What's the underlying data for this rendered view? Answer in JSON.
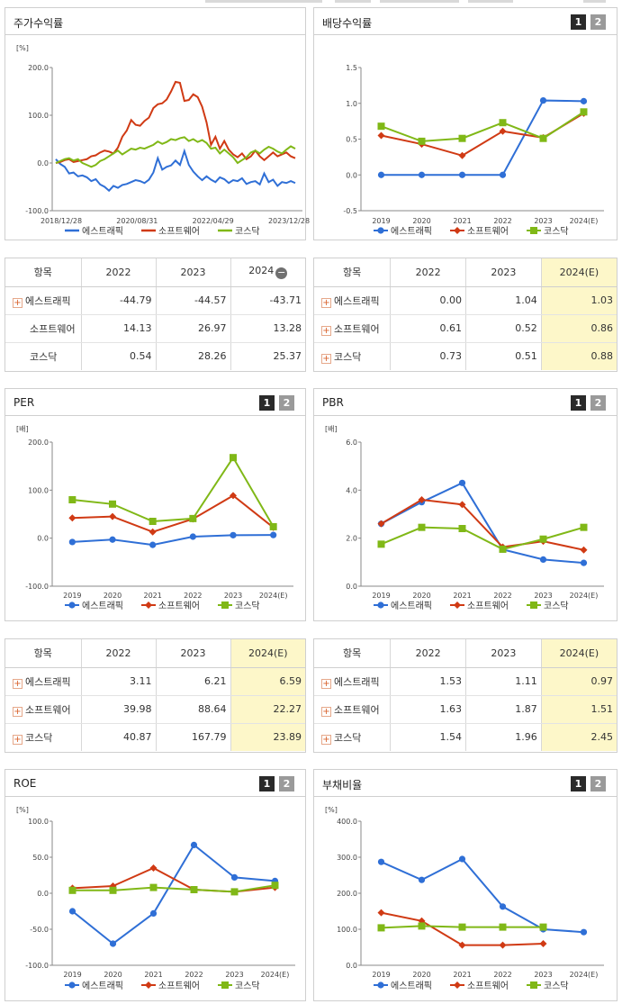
{
  "panels": {
    "stock_return": {
      "title": "주가수익률"
    },
    "dividend": {
      "title": "배당수익률"
    },
    "per": {
      "title": "PER"
    },
    "pbr": {
      "title": "PBR"
    },
    "roe": {
      "title": "ROE"
    },
    "debt": {
      "title": "부채비율"
    }
  },
  "buttons": {
    "one": "1",
    "two": "2"
  },
  "legend_icons": {
    "에스트래픽": "circle",
    "소프트웨어": "diamond",
    "코스닥": "square"
  },
  "tables": {
    "return_table": {
      "headers": [
        "항목",
        "2022",
        "2023",
        "2024"
      ],
      "rows": [
        {
          "name": "에스트래픽",
          "plus": true,
          "values": [
            "-44.79",
            "-44.57",
            "-43.71"
          ]
        },
        {
          "name": "소프트웨어",
          "plus": false,
          "values": [
            "14.13",
            "26.97",
            "13.28"
          ]
        },
        {
          "name": "코스닥",
          "plus": false,
          "values": [
            "0.54",
            "28.26",
            "25.37"
          ]
        }
      ]
    },
    "dividend_table": {
      "headers": [
        "항목",
        "2022",
        "2023",
        "2024(E)"
      ],
      "rows": [
        {
          "name": "에스트래픽",
          "plus": true,
          "values": [
            "0.00",
            "1.04",
            "1.03"
          ]
        },
        {
          "name": "소프트웨어",
          "plus": true,
          "values": [
            "0.61",
            "0.52",
            "0.86"
          ]
        },
        {
          "name": "코스닥",
          "plus": true,
          "values": [
            "0.73",
            "0.51",
            "0.88"
          ]
        }
      ]
    },
    "per_table": {
      "headers": [
        "항목",
        "2022",
        "2023",
        "2024(E)"
      ],
      "rows": [
        {
          "name": "에스트래픽",
          "plus": true,
          "values": [
            "3.11",
            "6.21",
            "6.59"
          ]
        },
        {
          "name": "소프트웨어",
          "plus": true,
          "values": [
            "39.98",
            "88.64",
            "22.27"
          ]
        },
        {
          "name": "코스닥",
          "plus": true,
          "values": [
            "40.87",
            "167.79",
            "23.89"
          ]
        }
      ]
    },
    "pbr_table": {
      "headers": [
        "항목",
        "2022",
        "2023",
        "2024(E)"
      ],
      "rows": [
        {
          "name": "에스트래픽",
          "plus": true,
          "values": [
            "1.53",
            "1.11",
            "0.97"
          ]
        },
        {
          "name": "소프트웨어",
          "plus": true,
          "values": [
            "1.63",
            "1.87",
            "1.51"
          ]
        },
        {
          "name": "코스닥",
          "plus": true,
          "values": [
            "1.54",
            "1.96",
            "2.45"
          ]
        }
      ]
    }
  },
  "chart_data": [
    {
      "id": "stock_return",
      "type": "line",
      "unit": "[%]",
      "ylim": [
        -100,
        200
      ],
      "yticks": [
        "200.0",
        "100.0",
        "0.0",
        "-100.0"
      ],
      "xlabels": [
        "2018/12/28",
        "2020/08/31",
        "2022/04/29",
        "2023/12/28"
      ],
      "series": [
        {
          "name": "에스트래픽",
          "color": "#2f6fd6",
          "values": [
            8,
            -2,
            -8,
            -22,
            -20,
            -28,
            -26,
            -30,
            -38,
            -34,
            -45,
            -50,
            -58,
            -48,
            -52,
            -46,
            -44,
            -40,
            -36,
            -38,
            -42,
            -35,
            -20,
            10,
            -14,
            -8,
            -5,
            5,
            -4,
            25,
            -4,
            -18,
            -28,
            -36,
            -28,
            -35,
            -40,
            -30,
            -34,
            -42,
            -36,
            -38,
            -32,
            -44,
            -40,
            -38,
            -45,
            -22,
            -40,
            -35,
            -48,
            -40,
            -42,
            -38,
            -42
          ]
        },
        {
          "name": "소프트웨어",
          "color": "#d03a14",
          "values": [
            0,
            2,
            6,
            8,
            2,
            4,
            6,
            8,
            14,
            16,
            22,
            26,
            24,
            20,
            32,
            55,
            68,
            90,
            80,
            78,
            88,
            95,
            115,
            123,
            125,
            133,
            150,
            170,
            168,
            130,
            132,
            144,
            138,
            118,
            85,
            38,
            55,
            30,
            46,
            28,
            18,
            12,
            20,
            8,
            14,
            26,
            14,
            6,
            14,
            22,
            14,
            18,
            22,
            14,
            10
          ]
        },
        {
          "name": "코스닥",
          "color": "#80b817",
          "values": [
            0,
            4,
            8,
            10,
            5,
            8,
            0,
            -4,
            -8,
            -4,
            4,
            8,
            14,
            20,
            26,
            18,
            24,
            30,
            28,
            32,
            30,
            34,
            38,
            45,
            40,
            44,
            50,
            48,
            52,
            54,
            46,
            50,
            44,
            48,
            42,
            30,
            32,
            20,
            28,
            20,
            12,
            0,
            6,
            12,
            22,
            26,
            20,
            28,
            34,
            30,
            24,
            20,
            28,
            35,
            30
          ]
        }
      ]
    },
    {
      "id": "dividend",
      "type": "line",
      "ylim": [
        -0.5,
        1.5
      ],
      "yticks": [
        "1.5",
        "1.0",
        "0.5",
        "0.0",
        "-0.5"
      ],
      "categories": [
        "2019",
        "2020",
        "2021",
        "2022",
        "2023",
        "2024(E)"
      ],
      "series": [
        {
          "name": "에스트래픽",
          "color": "#2f6fd6",
          "marker": "circle",
          "values": [
            0.0,
            0.0,
            0.0,
            0.0,
            1.04,
            1.03
          ]
        },
        {
          "name": "소프트웨어",
          "color": "#d03a14",
          "marker": "diamond",
          "values": [
            0.55,
            0.43,
            0.27,
            0.61,
            0.52,
            0.86
          ]
        },
        {
          "name": "코스닥",
          "color": "#80b817",
          "marker": "square",
          "values": [
            0.68,
            0.47,
            0.51,
            0.73,
            0.51,
            0.88
          ]
        }
      ]
    },
    {
      "id": "per",
      "type": "line",
      "unit": "[배]",
      "ylim": [
        -100,
        200
      ],
      "yticks": [
        "200.0",
        "100.0",
        "0.0",
        "-100.0"
      ],
      "categories": [
        "2019",
        "2020",
        "2021",
        "2022",
        "2023",
        "2024(E)"
      ],
      "series": [
        {
          "name": "에스트래픽",
          "color": "#2f6fd6",
          "marker": "circle",
          "values": [
            -8,
            -3,
            -14,
            3.11,
            6.21,
            6.59
          ]
        },
        {
          "name": "소프트웨어",
          "color": "#d03a14",
          "marker": "diamond",
          "values": [
            42,
            45,
            13,
            39.98,
            88.64,
            22.27
          ]
        },
        {
          "name": "코스닥",
          "color": "#80b817",
          "marker": "square",
          "values": [
            80,
            71,
            35,
            40.87,
            167.79,
            23.89
          ]
        }
      ]
    },
    {
      "id": "pbr",
      "type": "line",
      "unit": "[배]",
      "ylim": [
        0,
        6
      ],
      "yticks": [
        "6.0",
        "4.0",
        "2.0",
        "0.0"
      ],
      "categories": [
        "2019",
        "2020",
        "2021",
        "2022",
        "2023",
        "2024(E)"
      ],
      "series": [
        {
          "name": "에스트래픽",
          "color": "#2f6fd6",
          "marker": "circle",
          "values": [
            2.6,
            3.5,
            4.3,
            1.53,
            1.11,
            0.97
          ]
        },
        {
          "name": "소프트웨어",
          "color": "#d03a14",
          "marker": "diamond",
          "values": [
            2.6,
            3.6,
            3.4,
            1.63,
            1.87,
            1.51
          ]
        },
        {
          "name": "코스닥",
          "color": "#80b817",
          "marker": "square",
          "values": [
            1.75,
            2.45,
            2.4,
            1.54,
            1.96,
            2.45
          ]
        }
      ]
    },
    {
      "id": "roe",
      "type": "line",
      "unit": "[%]",
      "ylim": [
        -100,
        100
      ],
      "yticks": [
        "100.0",
        "50.0",
        "0.0",
        "-50.0",
        "-100.0"
      ],
      "categories": [
        "2019",
        "2020",
        "2021",
        "2022",
        "2023",
        "2024(E)"
      ],
      "series": [
        {
          "name": "에스트래픽",
          "color": "#2f6fd6",
          "marker": "circle",
          "values": [
            -25,
            -70,
            -28,
            67,
            22,
            17
          ]
        },
        {
          "name": "소프트웨어",
          "color": "#d03a14",
          "marker": "diamond",
          "values": [
            7,
            10,
            35,
            5,
            2,
            8
          ]
        },
        {
          "name": "코스닥",
          "color": "#80b817",
          "marker": "square",
          "values": [
            4,
            4,
            8,
            5,
            2,
            11
          ]
        }
      ]
    },
    {
      "id": "debt",
      "type": "line",
      "unit": "[%]",
      "ylim": [
        0,
        400
      ],
      "yticks": [
        "400.0",
        "300.0",
        "200.0",
        "100.0",
        "0.0"
      ],
      "categories": [
        "2019",
        "2020",
        "2021",
        "2022",
        "2023",
        "2024(E)"
      ],
      "series": [
        {
          "name": "에스트래픽",
          "color": "#2f6fd6",
          "marker": "circle",
          "values": [
            287,
            237,
            295,
            163,
            100,
            92
          ]
        },
        {
          "name": "소프트웨어",
          "color": "#d03a14",
          "marker": "diamond",
          "values": [
            146,
            123,
            56,
            56,
            60,
            null
          ]
        },
        {
          "name": "코스닥",
          "color": "#80b817",
          "marker": "square",
          "values": [
            104,
            109,
            106,
            106,
            106,
            null
          ]
        }
      ]
    }
  ]
}
